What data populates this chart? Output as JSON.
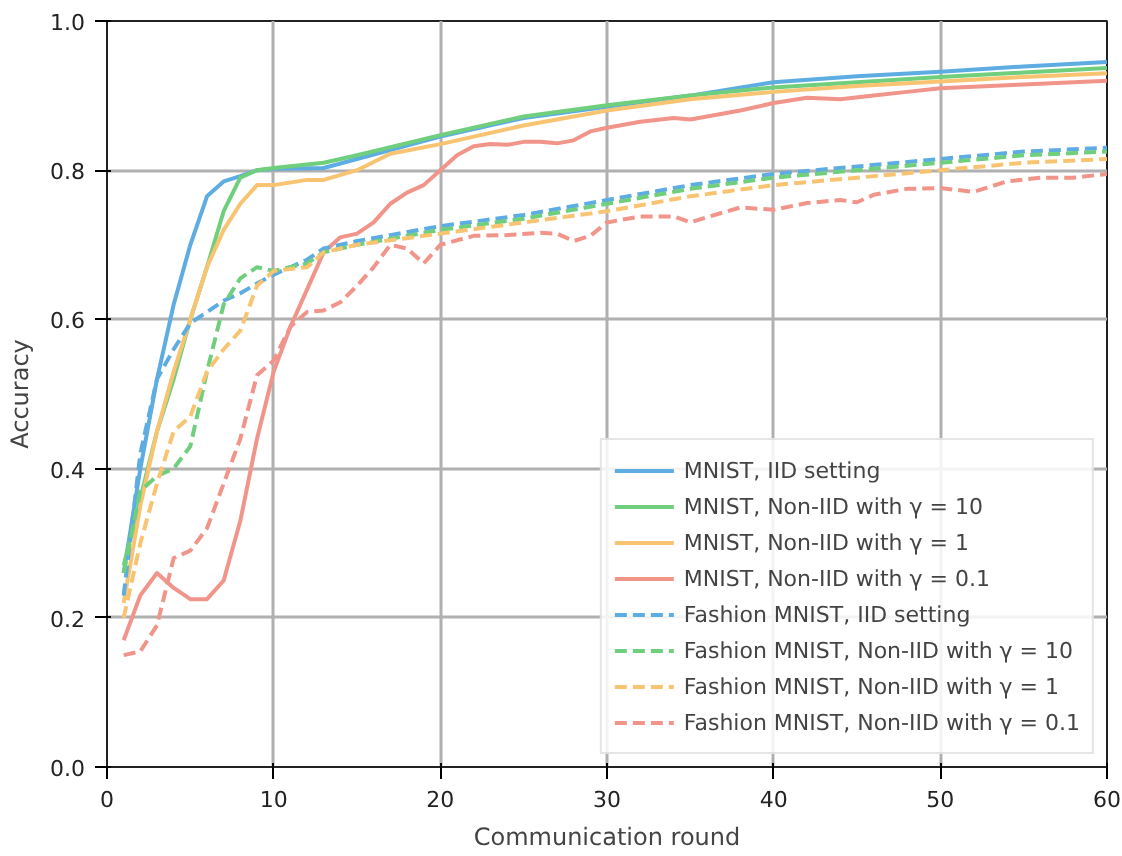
{
  "chart_data": {
    "type": "line",
    "xlabel": "Communication round",
    "ylabel": "Accuracy",
    "xlim": [
      0,
      60
    ],
    "ylim": [
      0.0,
      1.0
    ],
    "xticks": [
      0,
      10,
      20,
      30,
      40,
      50,
      60
    ],
    "yticks": [
      {
        "value": 0,
        "label": "0.0"
      },
      {
        "value": 0.2,
        "label": "0.2"
      },
      {
        "value": 0.4,
        "label": "0.4"
      },
      {
        "value": 0.6,
        "label": "0.6"
      },
      {
        "value": 0.8,
        "label": "0.8"
      },
      {
        "value": 1.0,
        "label": "1.0"
      }
    ],
    "grid": true,
    "legend": "bottom right",
    "series": [
      {
        "name": "MNIST, IID setting",
        "color": "#5dade2",
        "line_style": "solid",
        "x": [
          1,
          2,
          3,
          4,
          5,
          6,
          7,
          8,
          9,
          10,
          13,
          15,
          20,
          25,
          30,
          35,
          40,
          45,
          50,
          55,
          60
        ],
        "values": [
          0.26,
          0.4,
          0.52,
          0.62,
          0.7,
          0.765,
          0.785,
          0.792,
          0.8,
          0.802,
          0.803,
          0.815,
          0.845,
          0.87,
          0.885,
          0.9,
          0.918,
          0.926,
          0.932,
          0.939,
          0.945
        ]
      },
      {
        "name": "MNIST, Non-IID with γ = 10",
        "color": "#6fcf7c",
        "line_style": "solid",
        "x": [
          1,
          2,
          3,
          4,
          5,
          6,
          7,
          8,
          9,
          10,
          13,
          15,
          20,
          25,
          30,
          35,
          40,
          45,
          50,
          55,
          60
        ],
        "values": [
          0.27,
          0.36,
          0.45,
          0.52,
          0.6,
          0.67,
          0.745,
          0.79,
          0.8,
          0.803,
          0.81,
          0.82,
          0.847,
          0.872,
          0.887,
          0.9,
          0.911,
          0.918,
          0.925,
          0.931,
          0.937
        ]
      },
      {
        "name": "MNIST, Non-IID with γ = 1",
        "color": "#f8c471",
        "line_style": "solid",
        "x": [
          1,
          2,
          3,
          4,
          5,
          6,
          7,
          8,
          9,
          10,
          12,
          13,
          15,
          17,
          20,
          25,
          30,
          35,
          40,
          45,
          50,
          55,
          60
        ],
        "values": [
          0.22,
          0.35,
          0.45,
          0.53,
          0.6,
          0.67,
          0.72,
          0.755,
          0.78,
          0.78,
          0.787,
          0.787,
          0.8,
          0.822,
          0.835,
          0.86,
          0.88,
          0.895,
          0.905,
          0.913,
          0.919,
          0.925,
          0.93
        ]
      },
      {
        "name": "MNIST, Non-IID with γ = 0.1",
        "color": "#f1948a",
        "line_style": "solid",
        "x": [
          1,
          2,
          3,
          4,
          5,
          6,
          7,
          8,
          9,
          10,
          11,
          12,
          13,
          14,
          15,
          16,
          17,
          18,
          19,
          20,
          21,
          22,
          23,
          24,
          25,
          26,
          27,
          28,
          29,
          30,
          32,
          34,
          35,
          36,
          38,
          40,
          42,
          44,
          46,
          48,
          50,
          55,
          60
        ],
        "values": [
          0.17,
          0.23,
          0.26,
          0.24,
          0.225,
          0.225,
          0.25,
          0.33,
          0.44,
          0.53,
          0.59,
          0.64,
          0.69,
          0.71,
          0.715,
          0.73,
          0.755,
          0.77,
          0.78,
          0.8,
          0.82,
          0.832,
          0.835,
          0.834,
          0.838,
          0.838,
          0.836,
          0.84,
          0.852,
          0.857,
          0.865,
          0.87,
          0.868,
          0.872,
          0.88,
          0.89,
          0.897,
          0.895,
          0.9,
          0.905,
          0.91,
          0.915,
          0.92
        ]
      },
      {
        "name": "Fashion MNIST, IID setting",
        "color": "#5dade2",
        "line_style": "dashed",
        "x": [
          1,
          2,
          3,
          4,
          5,
          6,
          7,
          8,
          9,
          10,
          12,
          13,
          15,
          20,
          25,
          30,
          35,
          40,
          45,
          50,
          55,
          60
        ],
        "values": [
          0.23,
          0.42,
          0.52,
          0.56,
          0.595,
          0.61,
          0.625,
          0.635,
          0.648,
          0.66,
          0.68,
          0.695,
          0.705,
          0.725,
          0.74,
          0.76,
          0.78,
          0.795,
          0.805,
          0.815,
          0.825,
          0.83
        ]
      },
      {
        "name": "Fashion MNIST, Non-IID with γ = 10",
        "color": "#6fcf7c",
        "line_style": "dashed",
        "x": [
          1,
          2,
          3,
          4,
          5,
          6,
          7,
          8,
          9,
          10,
          12,
          13,
          15,
          20,
          25,
          30,
          35,
          40,
          45,
          50,
          55,
          60
        ],
        "values": [
          0.26,
          0.37,
          0.39,
          0.4,
          0.43,
          0.53,
          0.62,
          0.655,
          0.67,
          0.665,
          0.675,
          0.69,
          0.7,
          0.72,
          0.735,
          0.755,
          0.775,
          0.79,
          0.8,
          0.81,
          0.82,
          0.825
        ]
      },
      {
        "name": "Fashion MNIST, Non-IID with γ = 1",
        "color": "#f8c471",
        "line_style": "dashed",
        "x": [
          1,
          2,
          3,
          4,
          5,
          6,
          7,
          8,
          9,
          10,
          12,
          13,
          15,
          20,
          25,
          30,
          35,
          40,
          45,
          50,
          55,
          60
        ],
        "values": [
          0.2,
          0.3,
          0.38,
          0.45,
          0.47,
          0.53,
          0.56,
          0.585,
          0.645,
          0.665,
          0.67,
          0.69,
          0.7,
          0.715,
          0.73,
          0.745,
          0.765,
          0.78,
          0.79,
          0.8,
          0.81,
          0.815
        ]
      },
      {
        "name": "Fashion MNIST, Non-IID with γ = 0.1",
        "color": "#f1948a",
        "line_style": "dashed",
        "x": [
          1,
          2,
          3,
          4,
          5,
          6,
          7,
          8,
          9,
          10,
          11,
          12,
          13,
          14,
          15,
          16,
          17,
          18,
          19,
          20,
          22,
          24,
          26,
          27,
          28,
          29,
          30,
          32,
          34,
          35,
          36,
          38,
          40,
          42,
          44,
          45,
          46,
          48,
          50,
          52,
          54,
          56,
          58,
          60
        ],
        "values": [
          0.15,
          0.155,
          0.19,
          0.28,
          0.29,
          0.32,
          0.38,
          0.44,
          0.525,
          0.545,
          0.59,
          0.61,
          0.612,
          0.623,
          0.645,
          0.67,
          0.7,
          0.695,
          0.675,
          0.7,
          0.712,
          0.713,
          0.716,
          0.715,
          0.705,
          0.712,
          0.73,
          0.738,
          0.738,
          0.73,
          0.737,
          0.75,
          0.747,
          0.756,
          0.76,
          0.757,
          0.767,
          0.775,
          0.776,
          0.771,
          0.785,
          0.79,
          0.79,
          0.795
        ]
      }
    ]
  }
}
